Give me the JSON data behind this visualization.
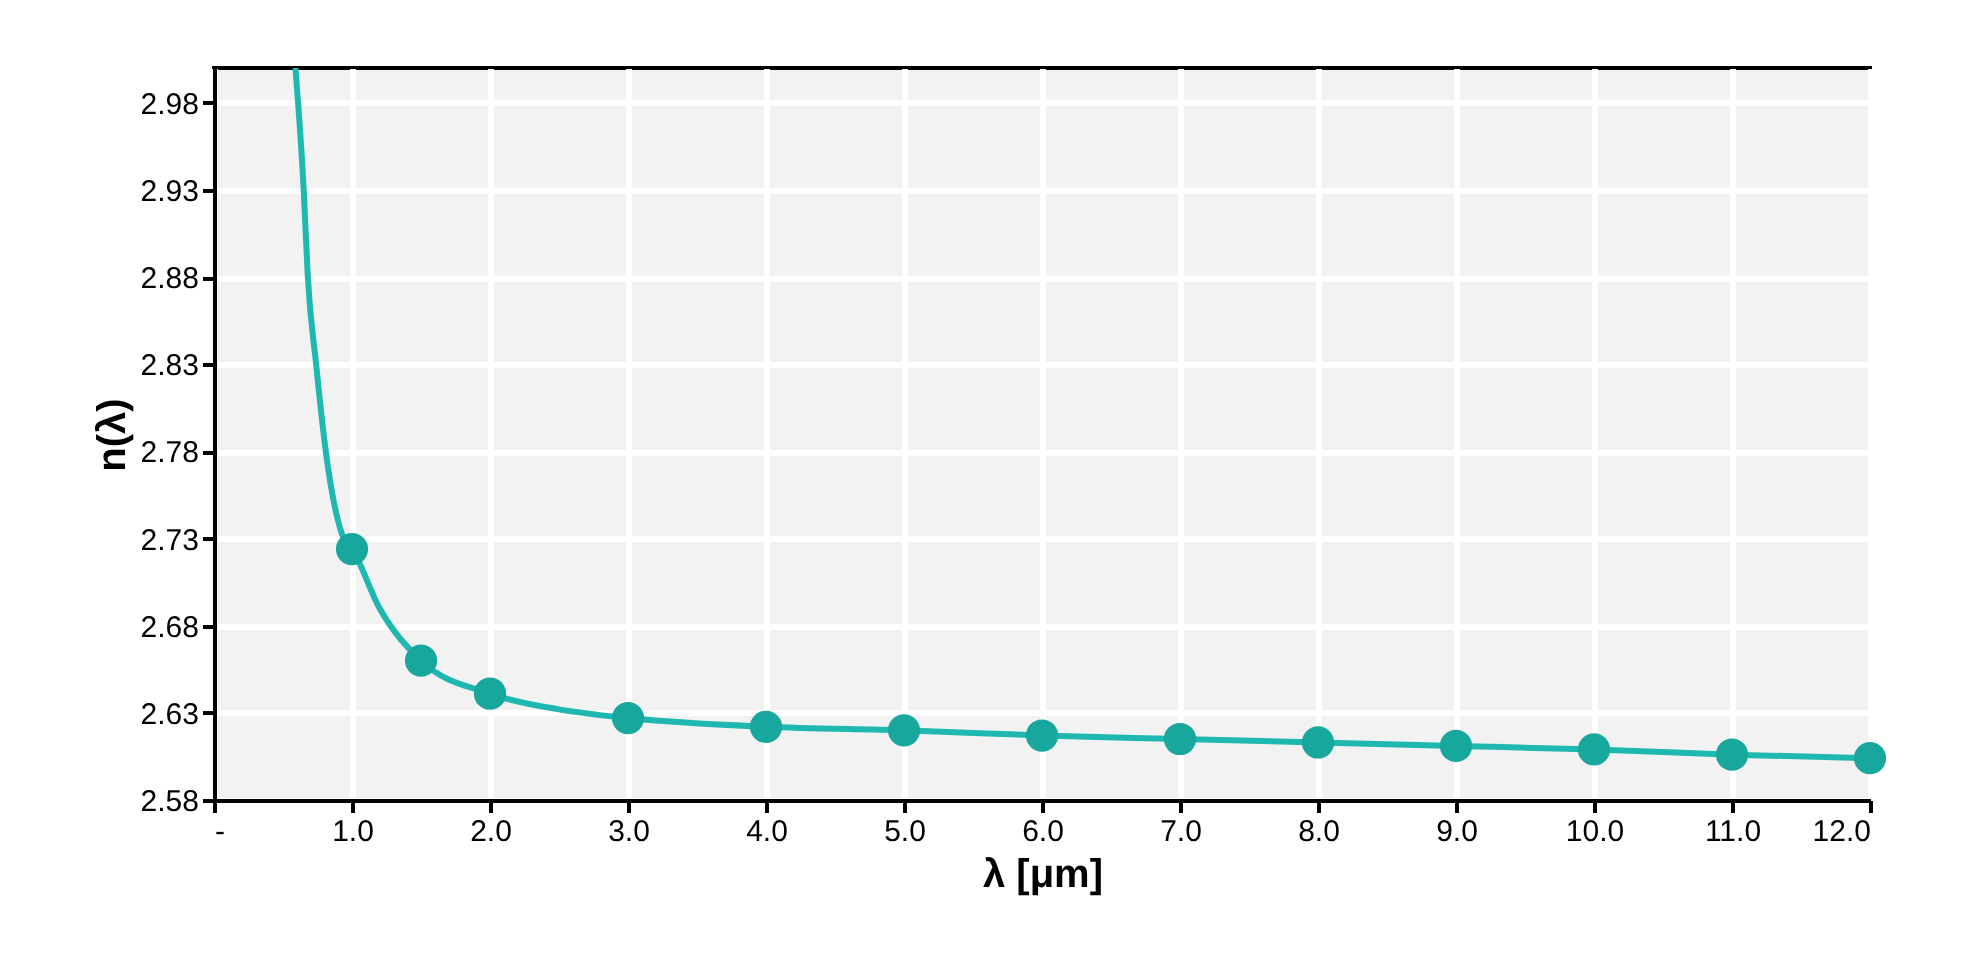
{
  "chart_data": {
    "type": "line",
    "xlabel": "λ [μm]",
    "ylabel": "n(λ)",
    "xlim": [
      0,
      12
    ],
    "ylim": [
      2.58,
      3.0
    ],
    "xticks": [
      {
        "value": 0,
        "label": "-"
      },
      {
        "value": 1,
        "label": "1.0"
      },
      {
        "value": 2,
        "label": "2.0"
      },
      {
        "value": 3,
        "label": "3.0"
      },
      {
        "value": 4,
        "label": "4.0"
      },
      {
        "value": 5,
        "label": "5.0"
      },
      {
        "value": 6,
        "label": "6.0"
      },
      {
        "value": 7,
        "label": "7.0"
      },
      {
        "value": 8,
        "label": "8.0"
      },
      {
        "value": 9,
        "label": "9.0"
      },
      {
        "value": 10,
        "label": "10.0"
      },
      {
        "value": 11,
        "label": "11.0"
      },
      {
        "value": 12,
        "label": "12.0"
      }
    ],
    "yticks": [
      2.58,
      2.63,
      2.68,
      2.73,
      2.78,
      2.83,
      2.88,
      2.93,
      2.98
    ],
    "grid": true,
    "series": [
      {
        "color": "#1fb8b0",
        "marker": "none",
        "x": [
          0.59,
          0.65,
          0.68,
          0.74,
          0.81,
          0.94,
          1.0,
          1.2,
          1.5,
          2.0,
          2.5,
          3.0,
          4.0,
          5.0,
          6.0,
          7.0,
          8.0,
          9.0,
          10.0,
          11.0,
          12.0
        ],
        "values": [
          3.0,
          2.93,
          2.88,
          2.83,
          2.78,
          2.73,
          2.724,
          2.69,
          2.66,
          2.641,
          2.632,
          2.627,
          2.622,
          2.62,
          2.617,
          2.615,
          2.613,
          2.611,
          2.609,
          2.606,
          2.604
        ]
      },
      {
        "type": "scatter",
        "color": "#17a79d",
        "marker": "circle",
        "x": [
          1.0,
          1.5,
          2.0,
          3.0,
          4.0,
          5.0,
          6.0,
          7.0,
          8.0,
          9.0,
          10.0,
          11.0,
          12.0
        ],
        "values": [
          2.724,
          2.66,
          2.641,
          2.627,
          2.622,
          2.62,
          2.617,
          2.615,
          2.613,
          2.611,
          2.609,
          2.606,
          2.604
        ]
      }
    ]
  }
}
